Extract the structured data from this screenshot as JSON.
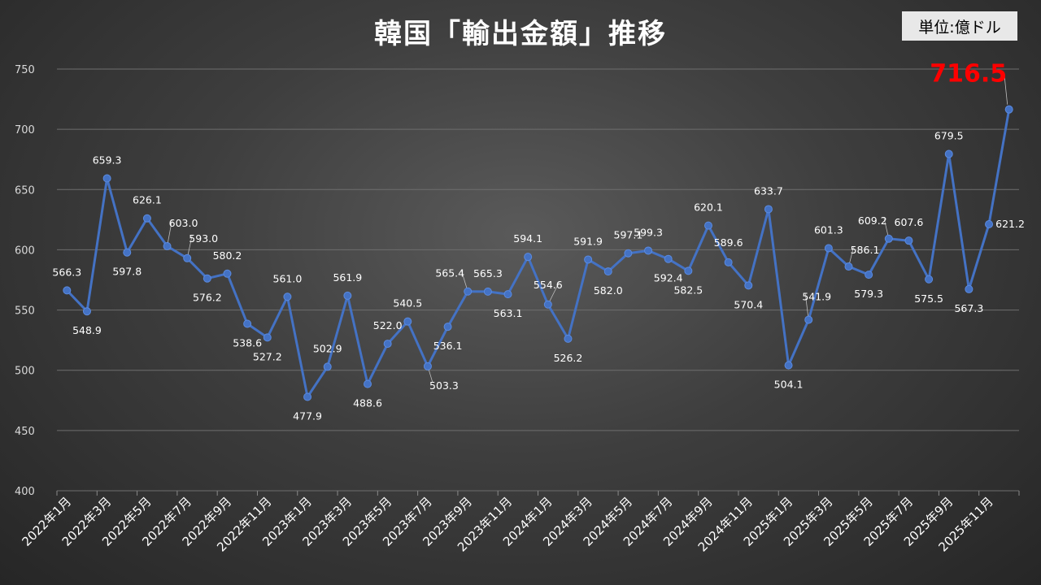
{
  "title": "韓国「輸出金額」推移",
  "unit_label": "単位:億ドル",
  "colors": {
    "line": "#4472C4",
    "highlight": "#FF0000",
    "text": "#FFFFFF"
  },
  "chart_data": {
    "type": "line",
    "title": "韓国「輸出金額」推移",
    "ylim": [
      400,
      750
    ],
    "yticks": [
      400,
      450,
      500,
      550,
      600,
      650,
      700,
      750
    ],
    "grid": true,
    "x_tick_labels": [
      "2022年1月",
      "2022年3月",
      "2022年5月",
      "2022年7月",
      "2022年9月",
      "2022年11月",
      "2023年1月",
      "2023年3月",
      "2023年5月",
      "2023年7月",
      "2023年9月",
      "2023年11月",
      "2024年1月",
      "2024年3月",
      "2024年5月",
      "2024年7月",
      "2024年9月",
      "2024年11月",
      "2025年1月",
      "2025年3月",
      "2025年5月",
      "2025年7月",
      "2025年9月",
      "2025年11月"
    ],
    "series": [
      {
        "values": [
          566.3,
          548.9,
          659.3,
          597.8,
          626.1,
          603.0,
          593.0,
          576.2,
          580.2,
          538.6,
          527.2,
          561.0,
          477.9,
          502.9,
          561.9,
          488.6,
          522.0,
          540.5,
          503.3,
          536.1,
          565.4,
          565.3,
          563.1,
          594.1,
          554.6,
          526.2,
          591.9,
          582.0,
          597.1,
          599.3,
          592.4,
          582.5,
          620.1,
          589.6,
          570.4,
          633.7,
          504.1,
          541.9,
          601.3,
          586.1,
          579.3,
          609.2,
          607.6,
          575.5,
          679.5,
          567.3,
          621.2,
          716.5
        ],
        "labels": [
          "566.3",
          "548.9",
          "659.3",
          "597.8",
          "626.1",
          "603.0",
          "593.0",
          "576.2",
          "580.2",
          "538.6",
          "527.2",
          "561.0",
          "477.9",
          "502.9",
          "561.9",
          "488.6",
          "522.0",
          "540.5",
          "503.3",
          "536.1",
          "565.4",
          "565.3",
          "563.1",
          "594.1",
          "554.6",
          "526.2",
          "591.9",
          "582.0",
          "597.1",
          "599.3",
          "592.4",
          "582.5",
          "620.1",
          "589.6",
          "570.4",
          "633.7",
          "504.1",
          "541.9",
          "601.3",
          "586.1",
          "579.3",
          "609.2",
          "607.6",
          "575.5",
          "679.5",
          "567.3",
          "621.2",
          "716.5"
        ]
      }
    ],
    "highlight_label": "716.5"
  }
}
